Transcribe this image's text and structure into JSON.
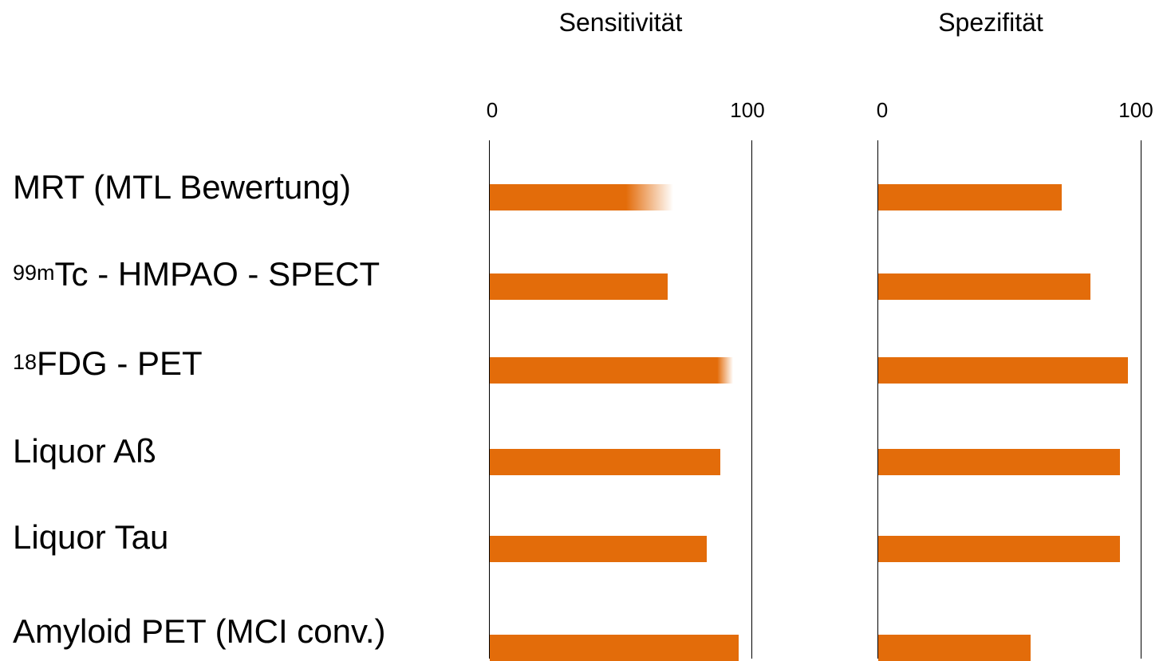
{
  "colors": {
    "bar": "#e36c0a",
    "axis": "#000000",
    "text": "#000000",
    "background": "#ffffff"
  },
  "chart_data": [
    {
      "type": "bar",
      "orientation": "horizontal",
      "title": "Sensitivität",
      "xlim": [
        0,
        100
      ],
      "ticks": [
        "0",
        "100"
      ],
      "categories": [
        "MRT (MTL Bewertung)",
        "99mTc - HMPAO - SPECT",
        "18FDG - PET",
        "Liquor Aß",
        "Liquor Tau",
        "Amyloid PET (MCI conv.)"
      ],
      "values": [
        70,
        68,
        93,
        88,
        83,
        95
      ],
      "uncertainty_fade": [
        {
          "category": "MRT (MTL Bewertung)",
          "from": 52,
          "to": 70
        },
        {
          "category": "18FDG - PET",
          "from": 87,
          "to": 93
        }
      ]
    },
    {
      "type": "bar",
      "orientation": "horizontal",
      "title": "Spezifität",
      "xlim": [
        0,
        100
      ],
      "ticks": [
        "0",
        "100"
      ],
      "categories": [
        "MRT (MTL Bewertung)",
        "99mTc - HMPAO - SPECT",
        "18FDG - PET",
        "Liquor Aß",
        "Liquor Tau",
        "Amyloid PET (MCI conv.)"
      ],
      "values": [
        70,
        81,
        95,
        92,
        92,
        58
      ]
    }
  ],
  "labels": [
    {
      "sup": "",
      "main": "MRT (MTL Bewertung)"
    },
    {
      "sup": "99m",
      "main": "Tc - HMPAO - SPECT"
    },
    {
      "sup": "18",
      "main": "FDG - PET"
    },
    {
      "sup": "",
      "main": "Liquor Aß"
    },
    {
      "sup": "",
      "main": "Liquor Tau"
    },
    {
      "sup": "",
      "main": "Amyloid PET (MCI conv.)"
    }
  ]
}
